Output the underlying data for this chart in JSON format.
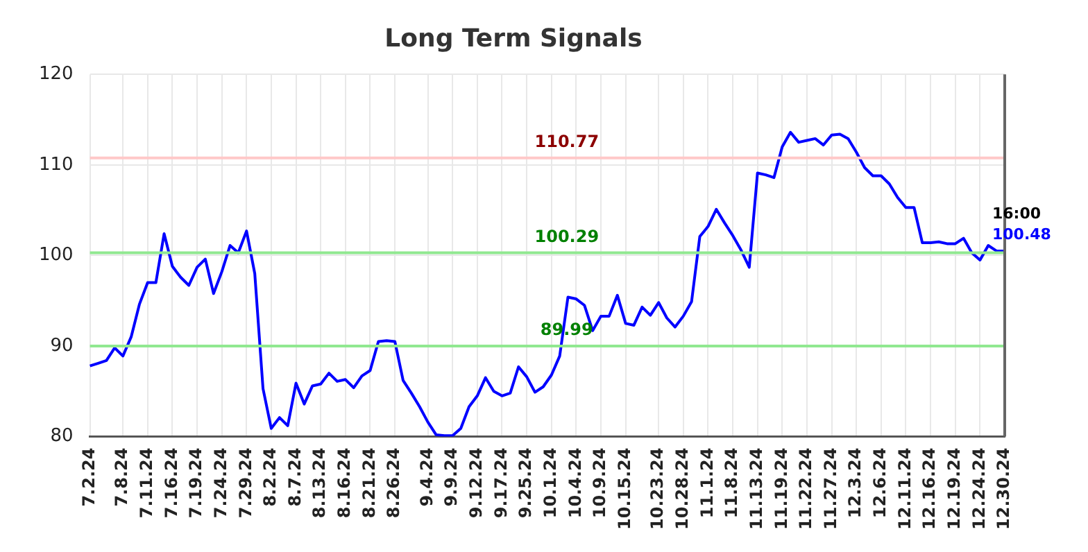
{
  "chart_data": {
    "type": "line",
    "title": "Long Term Signals",
    "categories": [
      "7.2.24",
      null,
      null,
      null,
      "7.8.24",
      null,
      null,
      "7.11.24",
      null,
      null,
      "7.16.24",
      null,
      null,
      "7.19.24",
      null,
      null,
      "7.24.24",
      null,
      null,
      "7.29.24",
      null,
      null,
      "8.2.24",
      null,
      null,
      "8.7.24",
      null,
      null,
      "8.13.24",
      null,
      null,
      "8.16.24",
      null,
      null,
      "8.21.24",
      null,
      null,
      "8.26.24",
      null,
      null,
      null,
      "9.4.24",
      null,
      null,
      "9.9.24",
      null,
      null,
      "9.12.24",
      null,
      null,
      "9.17.24",
      null,
      null,
      "9.25.24",
      null,
      null,
      "10.1.24",
      null,
      null,
      "10.4.24",
      null,
      null,
      "10.9.24",
      null,
      null,
      "10.15.24",
      null,
      null,
      null,
      "10.23.24",
      null,
      null,
      "10.28.24",
      null,
      null,
      "11.1.24",
      null,
      null,
      "11.8.24",
      null,
      null,
      "11.13.24",
      null,
      null,
      "11.19.24",
      null,
      null,
      "11.22.24",
      null,
      null,
      "11.27.24",
      null,
      null,
      "12.3.24",
      null,
      null,
      "12.6.24",
      null,
      null,
      "12.11.24",
      null,
      null,
      "12.16.24",
      null,
      null,
      "12.19.24",
      null,
      null,
      "12.24.24",
      null,
      null,
      "12.30.24"
    ],
    "series": [
      {
        "color": "#0000ff",
        "values": [
          87.8,
          88.1,
          88.4,
          89.8,
          88.9,
          91,
          94.6,
          97,
          97,
          102.4,
          98.8,
          97.6,
          96.7,
          98.7,
          99.6,
          95.8,
          98.2,
          101.1,
          100.3,
          102.7,
          98,
          85.3,
          80.9,
          82.1,
          81.2,
          85.9,
          83.6,
          85.6,
          85.8,
          87,
          86.1,
          86.3,
          85.4,
          86.7,
          87.3,
          90.5,
          90.6,
          90.5,
          86.2,
          84.8,
          83.3,
          81.6,
          80.2,
          80.1,
          80.1,
          80.9,
          83.3,
          84.5,
          86.5,
          85,
          84.5,
          84.8,
          87.7,
          86.6,
          84.9,
          85.5,
          86.8,
          88.9,
          95.4,
          95.2,
          94.5,
          91.7,
          93.3,
          93.3,
          95.6,
          92.5,
          92.3,
          94.3,
          93.4,
          94.8,
          93.1,
          92.1,
          93.3,
          94.9,
          102.1,
          103.2,
          105.1,
          103.6,
          102.2,
          100.6,
          98.7,
          109.1,
          108.9,
          108.6,
          112,
          113.6,
          112.5,
          112.7,
          112.9,
          112.2,
          113.3,
          113.4,
          112.9,
          111.4,
          109.7,
          108.8,
          108.8,
          107.9,
          106.4,
          105.3,
          105.3,
          101.4,
          101.4,
          101.5,
          101.3,
          101.3,
          101.9,
          100.3,
          99.5,
          101.1,
          100.5,
          100.48
        ],
        "value_labels": [
          null,
          null,
          null,
          null,
          null,
          null,
          null,
          null,
          null,
          null,
          null,
          null,
          null,
          null,
          null,
          null,
          null,
          null,
          null,
          null,
          null,
          null,
          null,
          null,
          null,
          null,
          null,
          null,
          null,
          null,
          null,
          null,
          null,
          null,
          null,
          null,
          null,
          null,
          null,
          null,
          null,
          null,
          null,
          null,
          null,
          null,
          null,
          null,
          null,
          null,
          null,
          null,
          null,
          null,
          null,
          null,
          null,
          null,
          null,
          null,
          null,
          null,
          null,
          null,
          null,
          null,
          null,
          null,
          null,
          null,
          null,
          null,
          null,
          null,
          null,
          null,
          null,
          null,
          null,
          null,
          null,
          null,
          null,
          null,
          null,
          null,
          null,
          null,
          null,
          null,
          null,
          null,
          null,
          null,
          null,
          null,
          null,
          null,
          null,
          null,
          null,
          null,
          null,
          null,
          null,
          null,
          null,
          null,
          null,
          null,
          null,
          "100.48"
        ]
      }
    ],
    "annotations": [
      "16:00"
    ],
    "ylim": [
      80,
      120
    ],
    "yticks": [
      80,
      90,
      100,
      110,
      120
    ],
    "grid": true,
    "legend": false,
    "marker": "none",
    "line_style": "solid",
    "ref_lines": [
      {
        "axis": "y",
        "value": 110.77,
        "label": "110.77",
        "color": "#ffc8c8"
      },
      {
        "axis": "y",
        "value": 100.29,
        "label": "100.29",
        "color": "#90e890"
      },
      {
        "axis": "y",
        "value": 89.99,
        "label": "89.99",
        "color": "#90e890"
      }
    ]
  }
}
